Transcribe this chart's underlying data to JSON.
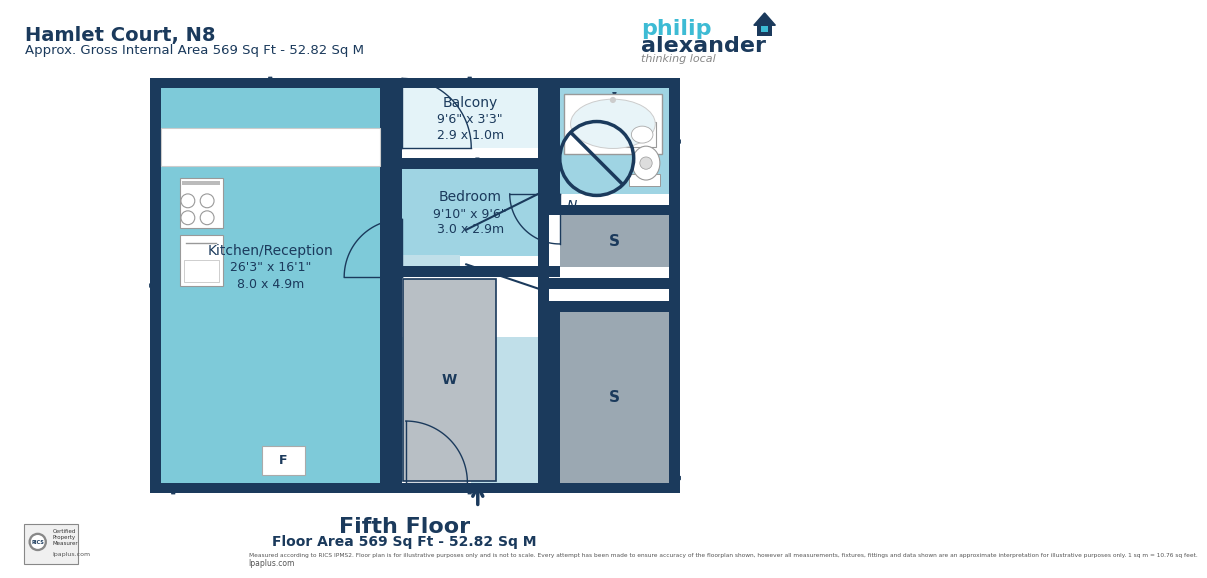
{
  "title1": "Hamlet Court, N8",
  "title2": "Approx. Gross Internal Area 569 Sq Ft - 52.82 Sq M",
  "footer1": "Fifth Floor",
  "footer2": "Floor Area 569 Sq Ft - 52.82 Sq M",
  "footer3": "Measured according to RICS IPMS2. Floor plan is for illustrative purposes only and is not to scale. Every attempt has been made to ensure accuracy of the floorplan shown, however all measurements, fixtures, fittings and data shown are an approximate interpretation for illustrative purposes only. 1 sq m = 10.76 sq feet.",
  "footer4": "lpaplus.com",
  "bg_color": "#ffffff",
  "wall_color": "#1b3a5c",
  "room_kitchen": "#7ecad9",
  "room_balcony": "#e4f3f8",
  "room_bedroom": "#9fd4e3",
  "room_hallway": "#c0dfe9",
  "room_bathroom": "#9fd4e3",
  "room_storage": "#9ba8b2",
  "text_dark": "#1b3a5c",
  "text_gray": "#666666"
}
